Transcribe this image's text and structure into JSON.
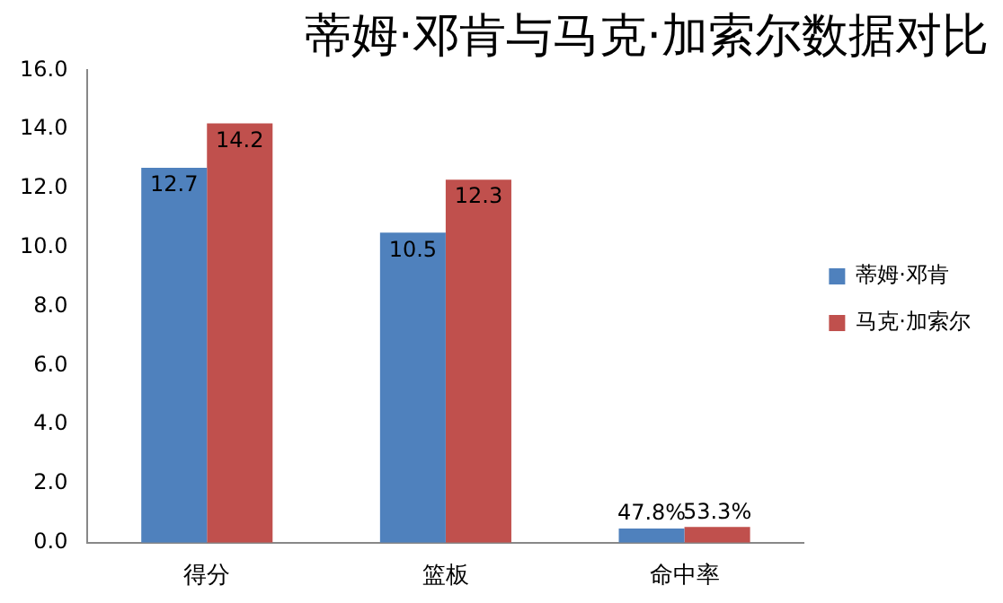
{
  "chart_data": {
    "type": "bar",
    "title": "蒂姆·邓肯与马克·加索尔数据对比",
    "categories": [
      "得分",
      "篮板",
      "命中率"
    ],
    "series": [
      {
        "name": "蒂姆·邓肯",
        "color": "#4f81bd",
        "values": [
          12.7,
          10.5,
          0.478
        ],
        "value_labels": [
          "12.7",
          "10.5",
          "47.8%"
        ]
      },
      {
        "name": "马克·加索尔",
        "color": "#c0504d",
        "values": [
          14.2,
          12.3,
          0.533
        ],
        "value_labels": [
          "14.2",
          "12.3",
          "53.3%"
        ]
      }
    ],
    "ylim": [
      0,
      16
    ],
    "yticks": [
      {
        "value": 0,
        "label": "0.0"
      },
      {
        "value": 2,
        "label": "2.0"
      },
      {
        "value": 4,
        "label": "4.0"
      },
      {
        "value": 6,
        "label": "6.0"
      },
      {
        "value": 8,
        "label": "8.0"
      },
      {
        "value": 10,
        "label": "10.0"
      },
      {
        "value": 12,
        "label": "12.0"
      },
      {
        "value": 14,
        "label": "14.0"
      },
      {
        "value": 16,
        "label": "16.0"
      }
    ],
    "grid": false,
    "legend": "right"
  }
}
